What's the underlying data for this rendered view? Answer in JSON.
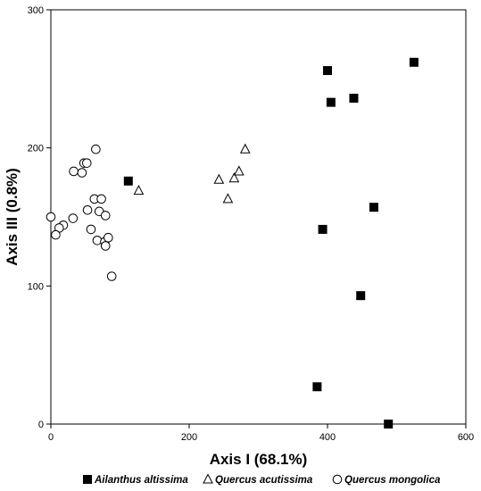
{
  "chart_data": {
    "type": "scatter",
    "title": "",
    "xlabel": "Axis I (68.1%)",
    "ylabel": "Axis III (0.8%)",
    "xlim": [
      0,
      600
    ],
    "ylim": [
      0,
      300
    ],
    "xticks": [
      "0",
      "200",
      "400",
      "600"
    ],
    "yticks": [
      "0",
      "100",
      "200",
      "300"
    ],
    "grid": false,
    "legend_position": "bottom",
    "series": [
      {
        "name": "Ailanthus altissima",
        "marker": "filled-square",
        "color": "#000000",
        "points": [
          {
            "x": 112,
            "y": 176
          },
          {
            "x": 400,
            "y": 256
          },
          {
            "x": 405,
            "y": 233
          },
          {
            "x": 438,
            "y": 236
          },
          {
            "x": 525,
            "y": 262
          },
          {
            "x": 393,
            "y": 141
          },
          {
            "x": 467,
            "y": 157
          },
          {
            "x": 448,
            "y": 93
          },
          {
            "x": 385,
            "y": 27
          },
          {
            "x": 488,
            "y": 0
          }
        ]
      },
      {
        "name": "Quercus acutissima",
        "marker": "open-triangle",
        "color": "#000000",
        "points": [
          {
            "x": 127,
            "y": 169
          },
          {
            "x": 243,
            "y": 177
          },
          {
            "x": 256,
            "y": 163
          },
          {
            "x": 265,
            "y": 178
          },
          {
            "x": 272,
            "y": 183
          },
          {
            "x": 281,
            "y": 199
          }
        ]
      },
      {
        "name": "Quercus mongolica",
        "marker": "open-circle",
        "color": "#000000",
        "points": [
          {
            "x": 65,
            "y": 199
          },
          {
            "x": 33,
            "y": 183
          },
          {
            "x": 45,
            "y": 182
          },
          {
            "x": 48,
            "y": 189
          },
          {
            "x": 52,
            "y": 189
          },
          {
            "x": 63,
            "y": 163
          },
          {
            "x": 73,
            "y": 163
          },
          {
            "x": 53,
            "y": 155
          },
          {
            "x": 70,
            "y": 154
          },
          {
            "x": 79,
            "y": 151
          },
          {
            "x": 0,
            "y": 150
          },
          {
            "x": 32,
            "y": 149
          },
          {
            "x": 18,
            "y": 144
          },
          {
            "x": 12,
            "y": 142
          },
          {
            "x": 7,
            "y": 137
          },
          {
            "x": 58,
            "y": 141
          },
          {
            "x": 67,
            "y": 133
          },
          {
            "x": 78,
            "y": 132
          },
          {
            "x": 79,
            "y": 129
          },
          {
            "x": 83,
            "y": 135
          },
          {
            "x": 88,
            "y": 107
          }
        ]
      }
    ]
  }
}
